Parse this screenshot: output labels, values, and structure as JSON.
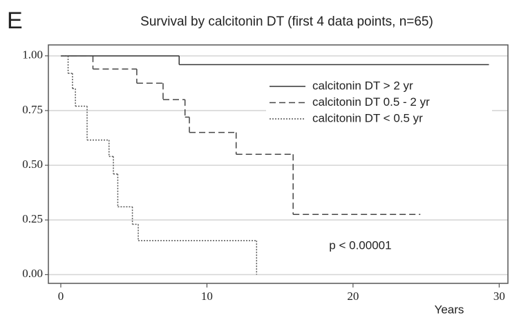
{
  "chart_data": {
    "type": "step",
    "panel_label": "E",
    "title": "Survival by calcitonin DT (first 4 data points, n=65)",
    "xlabel": "Years",
    "xlim": [
      -0.85,
      30.6
    ],
    "ylim": [
      -0.04,
      1.05
    ],
    "xticks": [
      0,
      10,
      20,
      30
    ],
    "yticks": [
      {
        "value": 0,
        "label": "0.00"
      },
      {
        "value": 0.25,
        "label": "0.25"
      },
      {
        "value": 0.5,
        "label": "0.50"
      },
      {
        "value": 0.75,
        "label": "0.75"
      },
      {
        "value": 1,
        "label": "1.00"
      }
    ],
    "grid": true,
    "legend": "upper right",
    "annotation": {
      "text": "p < 0.00001",
      "x": 20.5,
      "y": 0.13
    },
    "series": [
      {
        "name": "calcitonin DT > 2 yr",
        "color": "#333333",
        "dash": "solid",
        "x": [
          0,
          8.1,
          29.3
        ],
        "values": [
          1,
          0.96,
          0.96
        ]
      },
      {
        "name": "calcitonin DT  0.5 - 2 yr",
        "color": "#444444",
        "dash": "dashed",
        "x": [
          0,
          2.2,
          5.2,
          7.0,
          8.5,
          8.8,
          12.0,
          15.9,
          24.6
        ],
        "values": [
          1,
          0.94,
          0.875,
          0.8,
          0.72,
          0.65,
          0.55,
          0.275,
          0.275
        ]
      },
      {
        "name": "calcitonin DT < 0.5 yr",
        "color": "#555555",
        "dash": "dotted",
        "x": [
          0,
          0.5,
          0.8,
          1.0,
          1.8,
          3.3,
          3.6,
          3.9,
          4.9,
          5.3,
          13.4
        ],
        "values": [
          1,
          0.92,
          0.85,
          0.77,
          0.615,
          0.54,
          0.46,
          0.31,
          0.23,
          0.155,
          0
        ]
      }
    ]
  }
}
